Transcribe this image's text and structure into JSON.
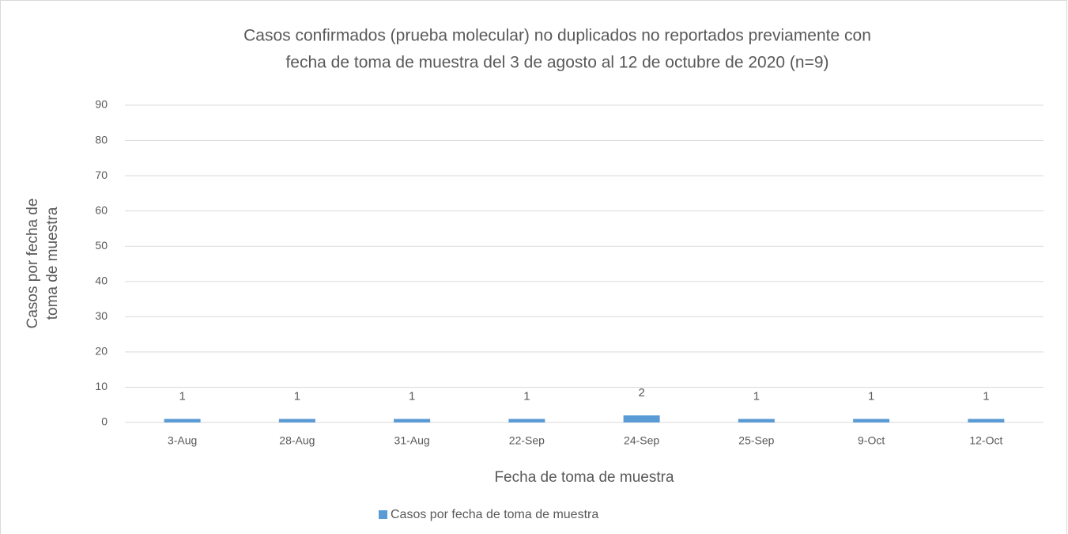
{
  "chart_data": {
    "type": "bar",
    "title": [
      "Casos confirmados (prueba molecular) no duplicados no reportados previamente con",
      "fecha de toma de muestra del 3 de agosto al 12 de octubre de 2020 (n=9)"
    ],
    "x_label": "Fecha de toma de muestra",
    "y_label": [
      "Casos por fecha de",
      "toma de muestra"
    ],
    "categories": [
      "3-Aug",
      "28-Aug",
      "31-Aug",
      "22-Sep",
      "24-Sep",
      "25-Sep",
      "9-Oct",
      "12-Oct"
    ],
    "series": [
      {
        "name": "Casos por fecha de toma de muestra",
        "color": "#5b9bd5",
        "values": [
          1,
          1,
          1,
          1,
          2,
          1,
          1,
          1
        ]
      }
    ],
    "ylim": [
      0,
      90
    ],
    "yticks": [
      0,
      10,
      20,
      30,
      40,
      50,
      60,
      70,
      80,
      90
    ],
    "grid": true,
    "legend": "bottom"
  }
}
